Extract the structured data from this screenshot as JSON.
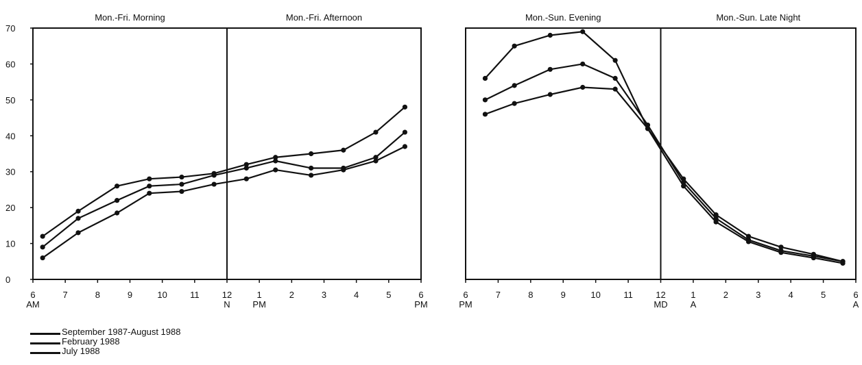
{
  "chart_data": [
    {
      "type": "line",
      "panel": "left",
      "section_titles": [
        "Mon.-Fri. Morning",
        "Mon.-Fri. Afternoon"
      ],
      "ylim": [
        0,
        70
      ],
      "yticks": [
        "0",
        "10",
        "20",
        "30",
        "40",
        "50",
        "60",
        "70"
      ],
      "xlim": [
        6,
        18
      ],
      "xticks": [
        {
          "x": 6,
          "label": "6",
          "sub": "AM"
        },
        {
          "x": 7,
          "label": "7",
          "sub": ""
        },
        {
          "x": 8,
          "label": "8",
          "sub": ""
        },
        {
          "x": 9,
          "label": "9",
          "sub": ""
        },
        {
          "x": 10,
          "label": "10",
          "sub": ""
        },
        {
          "x": 11,
          "label": "11",
          "sub": ""
        },
        {
          "x": 12,
          "label": "12",
          "sub": "N"
        },
        {
          "x": 13,
          "label": "1",
          "sub": "PM"
        },
        {
          "x": 14,
          "label": "2",
          "sub": ""
        },
        {
          "x": 15,
          "label": "3",
          "sub": ""
        },
        {
          "x": 16,
          "label": "4",
          "sub": ""
        },
        {
          "x": 17,
          "label": "5",
          "sub": ""
        },
        {
          "x": 18,
          "label": "6",
          "sub": "PM"
        }
      ],
      "divider_x": 12,
      "series": [
        {
          "x": [
            6.3,
            7.4,
            8.6,
            9.6,
            10.6,
            11.6,
            12.6,
            13.5,
            14.6,
            15.6,
            16.6,
            17.5
          ],
          "values": [
            12,
            19,
            26,
            28,
            28.5,
            29.5,
            32,
            34,
            35,
            36,
            41,
            48
          ]
        },
        {
          "x": [
            6.3,
            7.4,
            8.6,
            9.6,
            10.6,
            11.6,
            12.6,
            13.5,
            14.6,
            15.6,
            16.6,
            17.5
          ],
          "values": [
            9,
            17,
            22,
            26,
            26.5,
            29,
            31,
            33,
            31,
            31,
            34,
            41
          ]
        },
        {
          "x": [
            6.3,
            7.4,
            8.6,
            9.6,
            10.6,
            11.6,
            12.6,
            13.5,
            14.6,
            15.6,
            16.6,
            17.5
          ],
          "values": [
            6,
            13,
            18.5,
            24,
            24.5,
            26.5,
            28,
            30.5,
            29,
            30.5,
            33,
            37
          ]
        }
      ]
    },
    {
      "type": "line",
      "panel": "right",
      "section_titles": [
        "Mon.-Sun. Evening",
        "Mon.-Sun. Late Night"
      ],
      "ylim": [
        0,
        70
      ],
      "xlim": [
        18,
        30
      ],
      "xticks": [
        {
          "x": 18,
          "label": "6",
          "sub": "PM"
        },
        {
          "x": 19,
          "label": "7",
          "sub": ""
        },
        {
          "x": 20,
          "label": "8",
          "sub": ""
        },
        {
          "x": 21,
          "label": "9",
          "sub": ""
        },
        {
          "x": 22,
          "label": "10",
          "sub": ""
        },
        {
          "x": 23,
          "label": "11",
          "sub": ""
        },
        {
          "x": 24,
          "label": "12",
          "sub": "MD"
        },
        {
          "x": 25,
          "label": "1",
          "sub": "A"
        },
        {
          "x": 26,
          "label": "2",
          "sub": ""
        },
        {
          "x": 27,
          "label": "3",
          "sub": ""
        },
        {
          "x": 28,
          "label": "4",
          "sub": ""
        },
        {
          "x": 29,
          "label": "5",
          "sub": ""
        },
        {
          "x": 30,
          "label": "6",
          "sub": "A"
        }
      ],
      "divider_x": 24,
      "series": [
        {
          "x": [
            18.6,
            19.5,
            20.6,
            21.6,
            22.6,
            23.6,
            24.7,
            25.7,
            26.7,
            27.7,
            28.7,
            29.6
          ],
          "values": [
            56,
            65,
            68,
            69,
            61,
            42,
            28,
            18,
            12,
            9,
            7,
            5
          ]
        },
        {
          "x": [
            18.6,
            19.5,
            20.6,
            21.6,
            22.6,
            23.6,
            24.7,
            25.7,
            26.7,
            27.7,
            28.7,
            29.6
          ],
          "values": [
            50,
            54,
            58.5,
            60,
            56,
            43,
            27,
            17,
            11,
            8,
            6.5,
            5
          ]
        },
        {
          "x": [
            18.6,
            19.5,
            20.6,
            21.6,
            22.6,
            23.6,
            24.7,
            25.7,
            26.7,
            27.7,
            28.7,
            29.6
          ],
          "values": [
            46,
            49,
            51.5,
            53.5,
            53,
            42,
            26,
            16,
            10.5,
            7.5,
            6,
            4.5
          ]
        }
      ]
    }
  ],
  "legend": [
    {
      "label": "September 1987-August 1988"
    },
    {
      "label": "February 1988"
    },
    {
      "label": "July 1988"
    }
  ]
}
